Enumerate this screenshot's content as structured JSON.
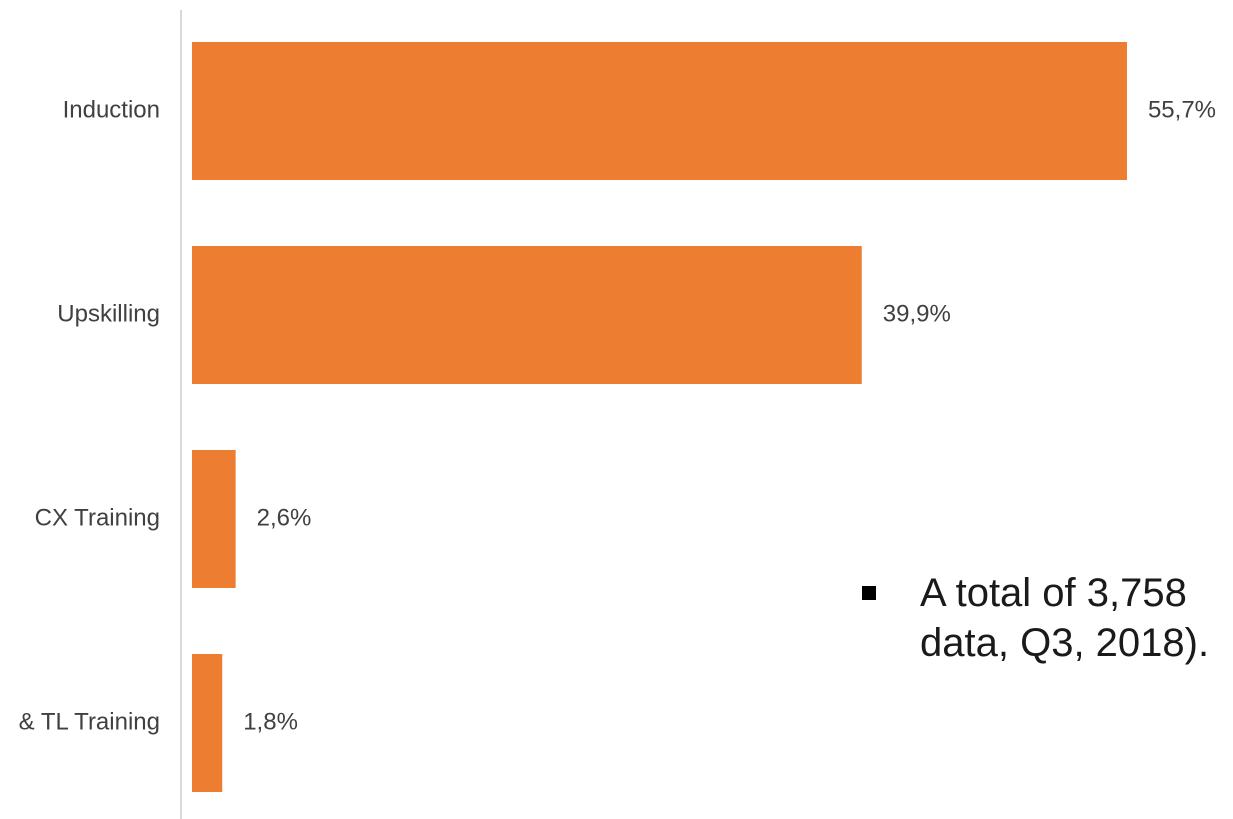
{
  "chart_data": {
    "type": "bar",
    "orientation": "horizontal",
    "categories": [
      "Induction",
      "Upskilling",
      "CX Training",
      "& TL Training"
    ],
    "values": [
      55.7,
      39.9,
      2.6,
      1.8
    ],
    "data_labels": [
      "55,7%",
      "39,9%",
      "2,6%",
      "1,8%"
    ],
    "xlim": [
      0,
      56
    ],
    "grid": false,
    "bar_color": "#ED7D31",
    "axis_color": "#D9D9D9",
    "text_color": "#404040"
  },
  "note": {
    "line1": "A total of 3,758",
    "line2": "data, Q3, 2018)."
  }
}
